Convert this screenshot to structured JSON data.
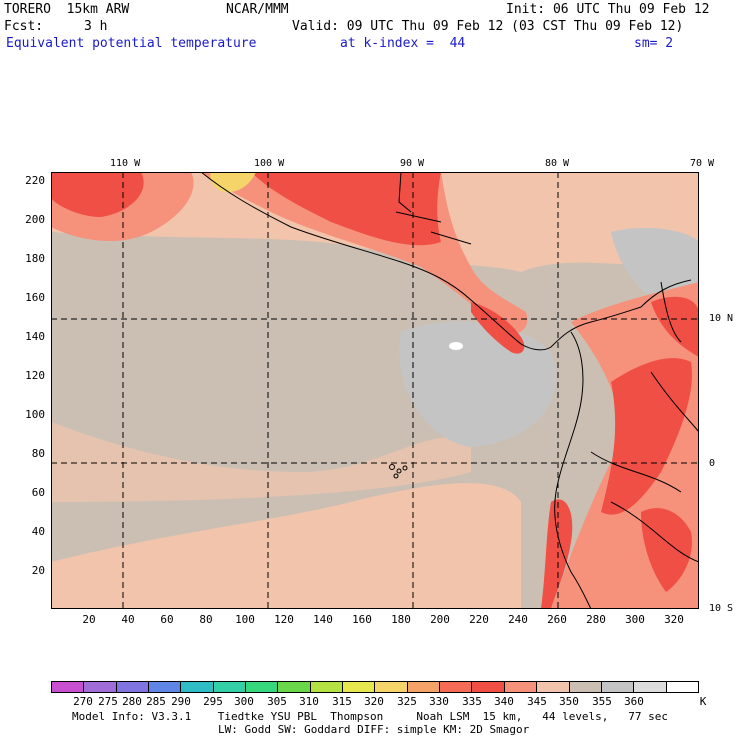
{
  "header": {
    "model": "TORERO  15km ARW",
    "org": "NCAR/MMM",
    "init": "Init: 06 UTC Thu 09 Feb 12",
    "fcst_label": "Fcst:",
    "fcst_value": "3 h",
    "valid": "Valid: 09 UTC Thu 09 Feb 12 (03 CST Thu 09 Feb 12)",
    "field": "Equivalent potential temperature",
    "level": "at k-index =  44",
    "smooth": "sm= 2"
  },
  "map": {
    "lon_labels": [
      "110 W",
      "100 W",
      "90 W",
      "80 W",
      "70 W"
    ],
    "lat_labels": [
      "10 N",
      "0",
      "10 S"
    ],
    "x_ticks": [
      "20",
      "40",
      "60",
      "80",
      "100",
      "120",
      "140",
      "160",
      "180",
      "200",
      "220",
      "240",
      "260",
      "280",
      "300",
      "320"
    ],
    "y_ticks": [
      "220",
      "200",
      "180",
      "160",
      "140",
      "120",
      "100",
      "80",
      "60",
      "40",
      "20"
    ],
    "background_color": "#cbbfb4",
    "grid_style": "dashed"
  },
  "colorbar": {
    "labels": [
      "270",
      "275",
      "280",
      "285",
      "290",
      "295",
      "300",
      "305",
      "310",
      "315",
      "320",
      "325",
      "330",
      "335",
      "340",
      "345",
      "350",
      "355",
      "360"
    ],
    "unit": "K",
    "colors": [
      "#c84fd0",
      "#a06cd8",
      "#7f74e0",
      "#5f86e6",
      "#2fbcc4",
      "#33d0a8",
      "#37d77e",
      "#6ad64a",
      "#b4e242",
      "#e6e84e",
      "#f5d46a",
      "#f5a268",
      "#f56b55",
      "#ef4f45",
      "#f6927c",
      "#f3c4ac",
      "#cbbfb4",
      "#c4c4c4",
      "#dcdcdc",
      "#ffffff"
    ]
  },
  "footer": {
    "line1": "Model Info: V3.3.1    Tiedtke YSU PBL  Thompson     Noah LSM  15 km,   44 levels,   77 sec",
    "line2": "LW: Godd SW: Goddard DIFF: simple KM: 2D Smagor"
  }
}
